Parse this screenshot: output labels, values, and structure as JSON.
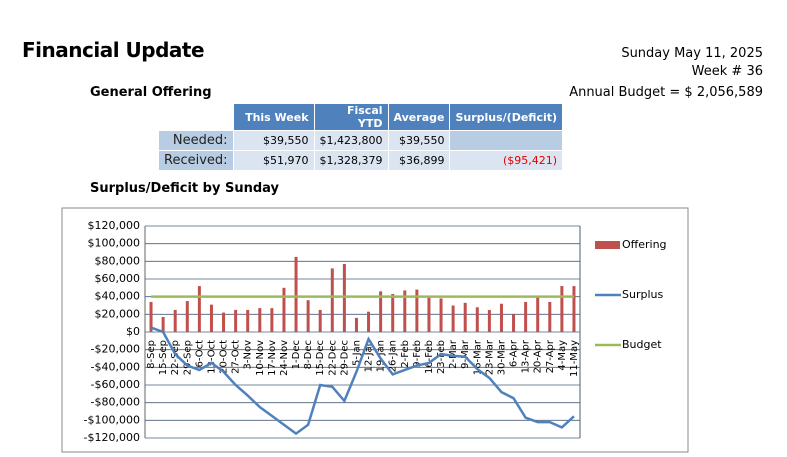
{
  "header": {
    "title": "Financial Update",
    "date": "Sunday May 11, 2025",
    "week": "Week # 36",
    "budget": "Annual Budget = $ 2,056,589",
    "section": "General Offering"
  },
  "table": {
    "columns": [
      "This Week",
      "Fiscal YTD",
      "Average",
      "Surplus/(Deficit)"
    ],
    "rows": [
      [
        "Needed:",
        "$39,550",
        "$1,423,800",
        "$39,550"
      ],
      [
        "Received:",
        "$51,970",
        "$1,328,379",
        "$36,899",
        "($95,421)"
      ]
    ]
  },
  "chart_data": {
    "type": "bar",
    "title": "Surplus/Deficit by Sunday",
    "categories": [
      "8-Sep",
      "15-Sep",
      "22-Sep",
      "29-Sep",
      "6-Oct",
      "13-Oct",
      "20-Oct",
      "27-Oct",
      "3-Nov",
      "10-Nov",
      "17-Nov",
      "24-Nov",
      "1-Dec",
      "8-Dec",
      "15-Dec",
      "22-Dec",
      "29-Dec",
      "5-Jan",
      "12-Jan",
      "19-Jan",
      "26-Jan",
      "2-Feb",
      "9-Feb",
      "16-Feb",
      "23-Feb",
      "2-Mar",
      "9-Mar",
      "16-Mar",
      "23-Mar",
      "30-Mar",
      "6-Apr",
      "13-Apr",
      "20-Apr",
      "27-Apr",
      "4-May",
      "11-May"
    ],
    "series": [
      {
        "name": "Offering",
        "type": "bar",
        "color": "#c0504d",
        "values": [
          34000,
          17000,
          25000,
          35000,
          52000,
          31000,
          22000,
          25000,
          25000,
          27000,
          27000,
          50000,
          85000,
          36000,
          25000,
          72000,
          77000,
          16000,
          23000,
          46000,
          43000,
          47000,
          48000,
          40000,
          38000,
          30000,
          33000,
          28000,
          25000,
          32000,
          20000,
          34000,
          40000,
          34000,
          52000,
          51970
        ]
      },
      {
        "name": "Surplus",
        "type": "line",
        "color": "#4f81bd",
        "values": [
          5000,
          0,
          -25000,
          -38000,
          -43000,
          -35000,
          -45000,
          -60000,
          -72000,
          -85000,
          -95000,
          -105000,
          -115000,
          -105000,
          -60000,
          -62000,
          -78000,
          -45000,
          -8000,
          -30000,
          -48000,
          -43000,
          -38000,
          -35000,
          -25000,
          -27000,
          -28000,
          -42000,
          -52000,
          -68000,
          -75000,
          -97000,
          -102000,
          -102000,
          -108000,
          -95421
        ]
      },
      {
        "name": "Budget",
        "type": "line",
        "color": "#9bbb59",
        "values": [
          40000,
          40000,
          40000,
          40000,
          40000,
          40000,
          40000,
          40000,
          40000,
          40000,
          40000,
          40000,
          40000,
          40000,
          40000,
          40000,
          40000,
          40000,
          40000,
          40000,
          40000,
          40000,
          40000,
          40000,
          40000,
          40000,
          40000,
          40000,
          40000,
          40000,
          40000,
          40000,
          40000,
          40000,
          40000,
          40000
        ]
      }
    ],
    "ylim": [
      -120000,
      120000
    ],
    "yticks": [
      {
        "value": -120000,
        "label": "-$120,000"
      },
      {
        "value": -100000,
        "label": "-$100,000"
      },
      {
        "value": -80000,
        "label": "-$80,000"
      },
      {
        "value": -60000,
        "label": "-$60,000"
      },
      {
        "value": -40000,
        "label": "-$40,000"
      },
      {
        "value": -20000,
        "label": "-$20,000"
      },
      {
        "value": 0,
        "label": "$0"
      },
      {
        "value": 20000,
        "label": "$20,000"
      },
      {
        "value": 40000,
        "label": "$40,000"
      },
      {
        "value": 60000,
        "label": "$60,000"
      },
      {
        "value": 80000,
        "label": "$80,000"
      },
      {
        "value": 100000,
        "label": "$100,000"
      },
      {
        "value": 120000,
        "label": "$120,000"
      }
    ],
    "grid": true,
    "legend": "right"
  }
}
